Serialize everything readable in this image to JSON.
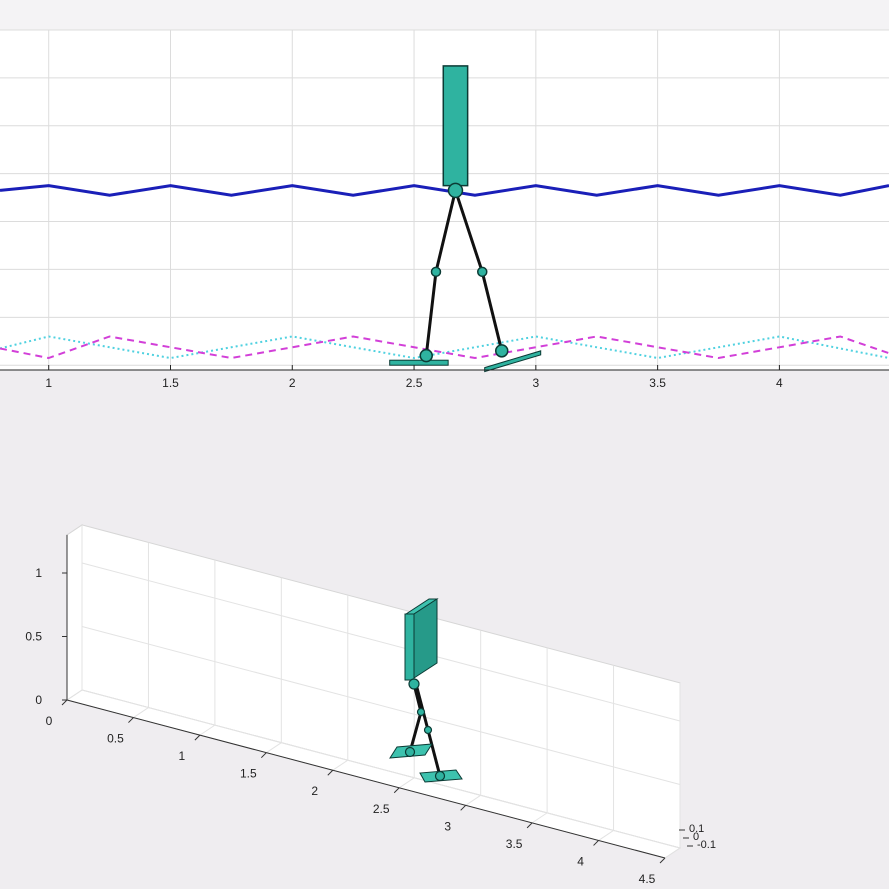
{
  "colors": {
    "figure_bg": "#efedf0",
    "axes_bg": "#ffffff",
    "grid": "#dcdcdc",
    "hip_trajectory": "#1a1fb8",
    "foot_solid_dotted": "#4fd1e0",
    "foot_dashed": "#d23fd8",
    "body_fill": "#2fb3a0",
    "body_edge": "#0b3b35",
    "leg": "#111111"
  },
  "chart_data": [
    {
      "type": "line",
      "view": "2d-side",
      "xlim": [
        0.8,
        4.45
      ],
      "ylim": [
        -0.02,
        1.4
      ],
      "grid": true,
      "x_ticks": [
        1,
        1.5,
        2,
        2.5,
        3,
        3.5,
        4
      ],
      "x_tick_labels": [
        "1",
        "1.5",
        "2",
        "2.5",
        "3",
        "3.5",
        "4"
      ],
      "series": [
        {
          "style": "solid",
          "color": "#1a1fb8",
          "x": [
            0.8,
            1.0,
            1.25,
            1.5,
            1.75,
            2.0,
            2.25,
            2.5,
            2.75,
            3.0,
            3.25,
            3.5,
            3.75,
            4.0,
            4.25,
            4.45
          ],
          "y": [
            0.73,
            0.75,
            0.71,
            0.75,
            0.71,
            0.75,
            0.71,
            0.75,
            0.71,
            0.75,
            0.71,
            0.75,
            0.71,
            0.75,
            0.71,
            0.75
          ]
        },
        {
          "style": "dotted",
          "color": "#4fd1e0",
          "x": [
            0.8,
            1.0,
            1.5,
            2.0,
            2.5,
            3.0,
            3.5,
            4.0,
            4.45
          ],
          "y": [
            0.07,
            0.12,
            0.03,
            0.12,
            0.03,
            0.12,
            0.03,
            0.12,
            0.03
          ]
        },
        {
          "style": "dashed",
          "color": "#d23fd8",
          "x": [
            0.8,
            1.0,
            1.25,
            1.75,
            2.25,
            2.75,
            3.25,
            3.75,
            4.25,
            4.45
          ],
          "y": [
            0.07,
            0.03,
            0.12,
            0.03,
            0.12,
            0.03,
            0.12,
            0.03,
            0.12,
            0.05
          ]
        }
      ],
      "walker": {
        "torso": {
          "x": [
            2.62,
            2.72
          ],
          "y": [
            0.75,
            1.25
          ]
        },
        "hip": [
          2.67,
          0.73
        ],
        "left_knee": [
          2.59,
          0.39
        ],
        "left_ankle": [
          2.55,
          0.04
        ],
        "right_knee": [
          2.78,
          0.39
        ],
        "right_ankle": [
          2.86,
          0.06
        ],
        "left_foot": {
          "x": [
            2.4,
            2.64
          ],
          "y": 0.0
        },
        "right_foot": {
          "x": [
            2.79,
            3.02
          ],
          "y": [
            -0.01,
            0.06
          ]
        }
      }
    },
    {
      "type": "line",
      "view": "3d",
      "zlim": [
        0,
        1.3
      ],
      "xlim": [
        0,
        4.5
      ],
      "z_ticks": [
        0,
        0.5,
        1
      ],
      "z_tick_labels": [
        "0",
        "0.5",
        "1"
      ],
      "x_ticks": [
        0,
        0.5,
        1,
        1.5,
        2,
        2.5,
        3,
        3.5,
        4,
        4.5
      ],
      "x_tick_labels": [
        "0",
        "0.5",
        "1",
        "1.5",
        "2",
        "2.5",
        "3",
        "3.5",
        "4",
        "4.5"
      ],
      "y_tick_labels": [
        "0.1",
        "0",
        "-0.1"
      ],
      "walker": {
        "position_x": 2.9,
        "torso_height": [
          0.75,
          1.25
        ]
      }
    }
  ]
}
